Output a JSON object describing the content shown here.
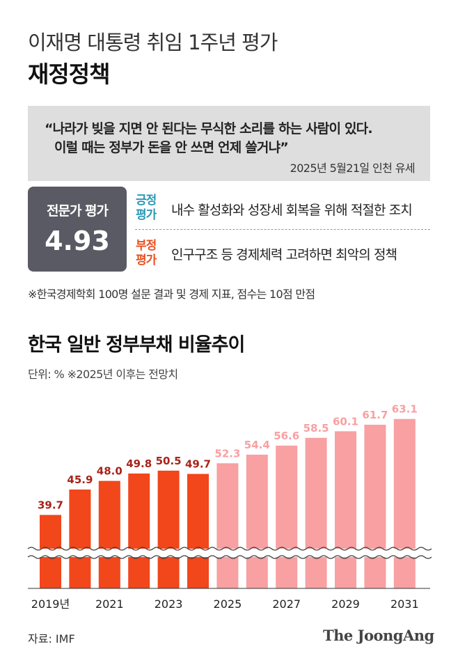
{
  "header": {
    "supertitle": "이재명 대통령 취임 1주년 평가",
    "title": "재정정책"
  },
  "quote": {
    "line1": "“나라가 빚을 지면 안 된다는 무식한 소리를 하는 사람이 있다.",
    "line2": "이럴 때는 정부가 돈을 안 쓰면 언제 쓸거냐”",
    "source": "2025년 5월21일 인천 유세"
  },
  "expert": {
    "label": "전문가 평가",
    "score": "4.93"
  },
  "evaluations": {
    "positive_tag_1": "긍정",
    "positive_tag_2": "평가",
    "positive_text": "내수 활성화와 성장세 회복을 위해 적절한 조치",
    "negative_tag_1": "부정",
    "negative_tag_2": "평가",
    "negative_text": "인구구조 등 경제체력 고려하면 최악의 정책"
  },
  "footnote": "※한국경제학회 100명 설문 결과 및 경제 지표, 점수는 10점 만점",
  "source": "자료: IMF",
  "brand": "The JoongAng",
  "colors": {
    "actual": "#f2461b",
    "actual_label": "#a8231a",
    "forecast": "#f8a0a2",
    "forecast_label": "#f8a0a2",
    "positive": "#2a97b7",
    "negative": "#e8501f",
    "box_gray": "#5a5a64",
    "quote_bg": "#dedede"
  },
  "chart_data": {
    "type": "bar",
    "title": "한국 일반 정부부채 비율추이",
    "unit_note": "단위: %  ※2025년 이후는 전망치",
    "axis_broken": true,
    "categories": [
      "2019",
      "2020",
      "2021",
      "2022",
      "2023",
      "2024",
      "2025",
      "2026",
      "2027",
      "2028",
      "2029",
      "2030",
      "2031"
    ],
    "values": [
      39.7,
      45.9,
      48.0,
      49.8,
      50.5,
      49.7,
      52.3,
      54.4,
      56.6,
      58.5,
      60.1,
      61.7,
      63.1
    ],
    "value_labels": [
      "39.7",
      "45.9",
      "48.0",
      "49.8",
      "50.5",
      "49.7",
      "52.3",
      "54.4",
      "56.6",
      "58.5",
      "60.1",
      "61.7",
      "63.1"
    ],
    "forecast_from": "2025",
    "x_tick_labels": [
      {
        "category": "2019",
        "text": "2019년"
      },
      {
        "category": "2021",
        "text": "2021"
      },
      {
        "category": "2023",
        "text": "2023"
      },
      {
        "category": "2025",
        "text": "2025"
      },
      {
        "category": "2027",
        "text": "2027"
      },
      {
        "category": "2029",
        "text": "2029"
      },
      {
        "category": "2031",
        "text": "2031"
      }
    ]
  }
}
